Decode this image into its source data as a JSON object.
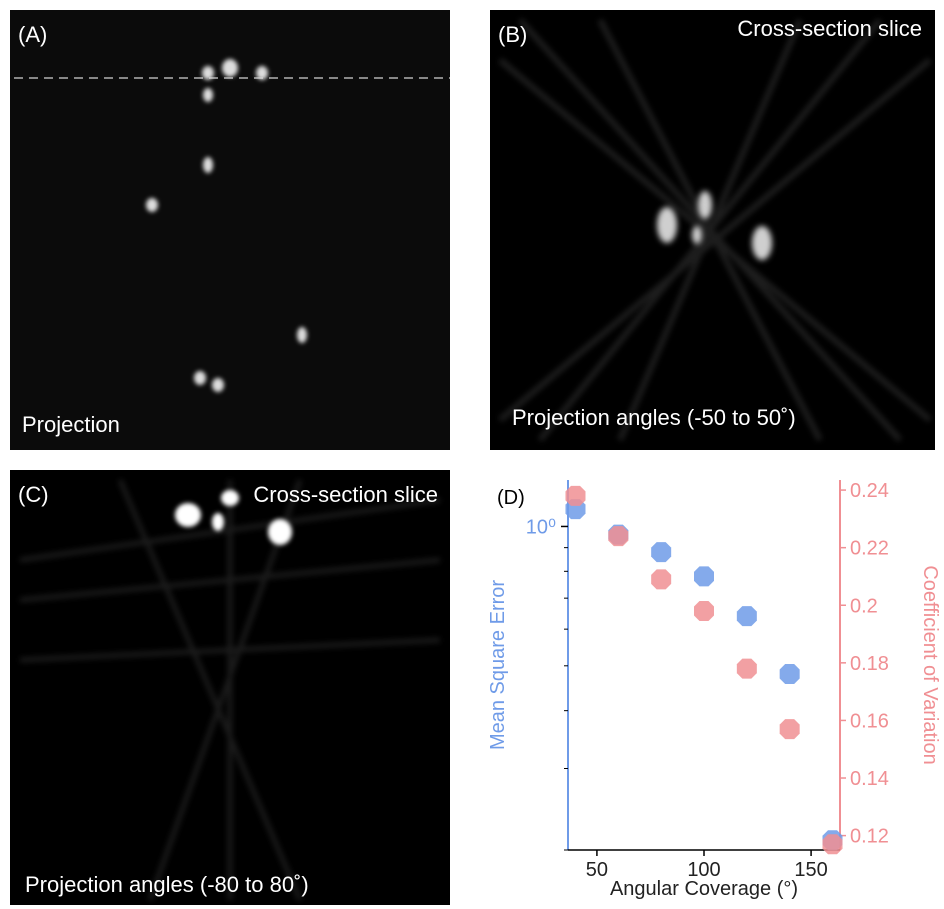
{
  "panels": [
    {
      "label": "(A)",
      "caption": "Projection"
    },
    {
      "label": "(B)",
      "title": "Cross-section slice",
      "caption": "Projection angles (-50 to 50˚)"
    },
    {
      "label": "(C)",
      "title": "Cross-section slice",
      "caption": "Projection angles (-80 to 80˚)"
    },
    {
      "label": "(D)"
    }
  ],
  "chart_data": {
    "type": "scatter",
    "xlabel": "Angular Coverage (°)",
    "ylabel": "Mean Square Error",
    "y2label": "Coefficient of Variation",
    "x": [
      40,
      60,
      80,
      100,
      120,
      140,
      160
    ],
    "series": [
      {
        "color": "#6f9be8",
        "values": [
          1.09,
          0.96,
          0.88,
          0.78,
          0.64,
          0.48,
          0.21
        ]
      },
      {
        "color": "#f08f93",
        "axis": "y2",
        "values": [
          0.238,
          0.224,
          0.209,
          0.198,
          0.178,
          0.157,
          0.117
        ]
      }
    ],
    "xlim": [
      36.5,
      163.5
    ],
    "xticks": [
      50,
      100,
      150
    ],
    "ylim": [
      0.2,
      1.26
    ],
    "yscale": "log",
    "yticks": [
      {
        "value": 1,
        "label": "10⁰"
      }
    ],
    "yminorticks": [
      0.2,
      0.3,
      0.4,
      0.5,
      0.6,
      0.7,
      0.8,
      0.9
    ],
    "y2lim": [
      0.115,
      0.2435
    ],
    "y2ticks": [
      0.12,
      0.14,
      0.16,
      0.18,
      0.2,
      0.22,
      0.24
    ]
  }
}
